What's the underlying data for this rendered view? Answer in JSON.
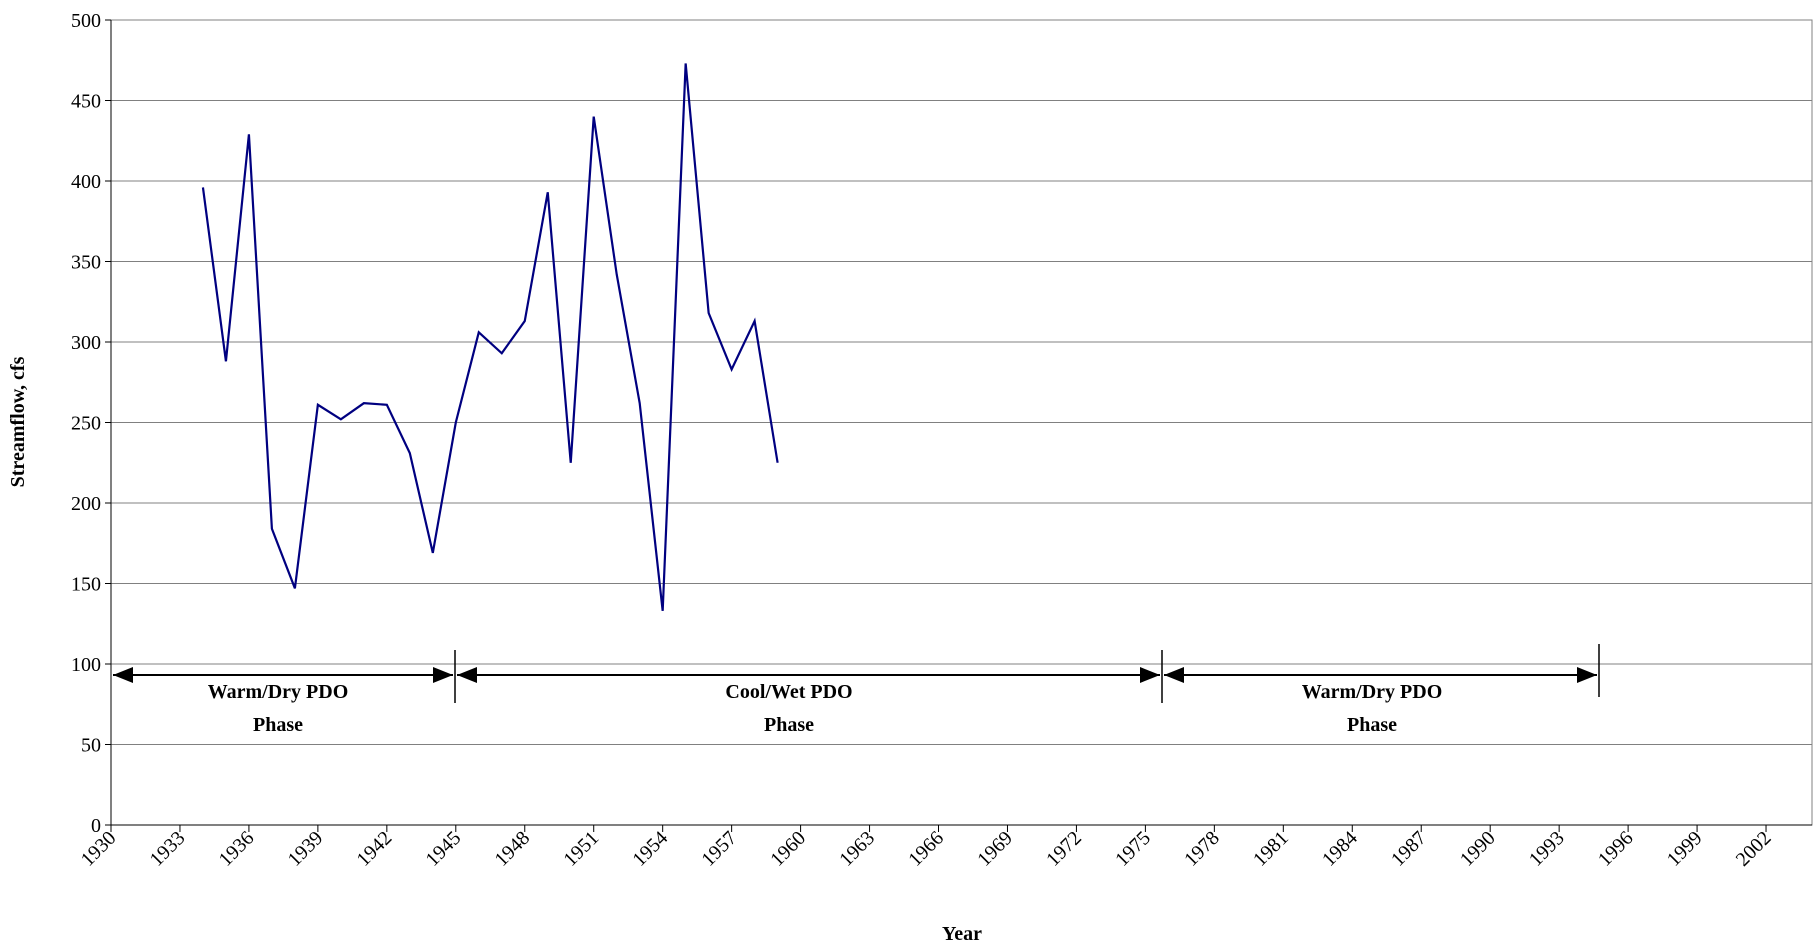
{
  "chart_data": {
    "type": "line",
    "x_label": "Year",
    "y_label": "Streamflow, cfs",
    "x": [
      1934,
      1935,
      1936,
      1937,
      1938,
      1939,
      1940,
      1941,
      1942,
      1943,
      1944,
      1945,
      1946,
      1947,
      1948,
      1949,
      1950,
      1951,
      1952,
      1953,
      1954,
      1955,
      1956,
      1957,
      1958,
      1959
    ],
    "series": [
      {
        "color": "#000080",
        "values": [
          396,
          288,
          429,
          184,
          147,
          261,
          252,
          262,
          261,
          231,
          169,
          250,
          306,
          293,
          313,
          393,
          225,
          440,
          342,
          262,
          133,
          473,
          318,
          283,
          313,
          225
        ]
      }
    ],
    "xlim": [
      1930,
      2004
    ],
    "xticks": [
      1930,
      1933,
      1936,
      1939,
      1942,
      1945,
      1948,
      1951,
      1954,
      1957,
      1960,
      1963,
      1966,
      1969,
      1972,
      1975,
      1978,
      1981,
      1984,
      1987,
      1990,
      1993,
      1996,
      1999,
      2002
    ],
    "ylim": [
      0,
      500
    ],
    "yticks": [
      0,
      50,
      100,
      150,
      200,
      250,
      300,
      350,
      400,
      450,
      500
    ],
    "grid": true,
    "annotations": [
      {
        "lines": [
          "Warm/Dry PDO",
          "Phase"
        ]
      },
      {
        "lines": [
          "Cool/Wet PDO",
          "Phase"
        ]
      },
      {
        "lines": [
          "Warm/Dry PDO",
          "Phase"
        ]
      }
    ]
  }
}
